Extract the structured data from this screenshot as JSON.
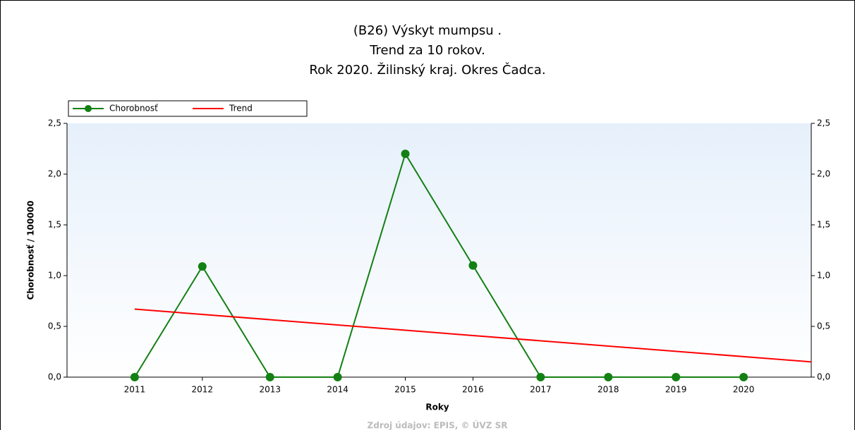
{
  "chart_data": {
    "type": "line",
    "title": [
      "(B26) Výskyt mumpsu .",
      "Trend za 10 rokov.",
      "Rok 2020. Žilinský kraj. Okres Čadca."
    ],
    "x_label": "Roky",
    "y_label": "Chorobnosť / 100000",
    "source": "Zdroj údajov: EPIS, © ÚVZ SR",
    "x": [
      2011,
      2012,
      2013,
      2014,
      2015,
      2016,
      2017,
      2018,
      2019,
      2020
    ],
    "series": [
      {
        "name": "Chorobnosť",
        "color": "#138013",
        "values": [
          0,
          1.09,
          0,
          0,
          2.2,
          1.1,
          0,
          0,
          0,
          0
        ]
      },
      {
        "name": "Trend",
        "color": "#ff0000",
        "x": [
          2011,
          2021
        ],
        "values": [
          0.67,
          0.15
        ]
      }
    ],
    "xlim": [
      2010,
      2021
    ],
    "xticks": [
      2011,
      2012,
      2013,
      2014,
      2015,
      2016,
      2017,
      2018,
      2019,
      2020
    ],
    "ylim": [
      0,
      2.5
    ],
    "yticks": [
      {
        "value": 0,
        "label": "0,0"
      },
      {
        "value": 0.5,
        "label": "0,5"
      },
      {
        "value": 1,
        "label": "1,0"
      },
      {
        "value": 1.5,
        "label": "1,5"
      },
      {
        "value": 2,
        "label": "2,0"
      },
      {
        "value": 2.5,
        "label": "2,5"
      }
    ],
    "legend": "top-left"
  }
}
